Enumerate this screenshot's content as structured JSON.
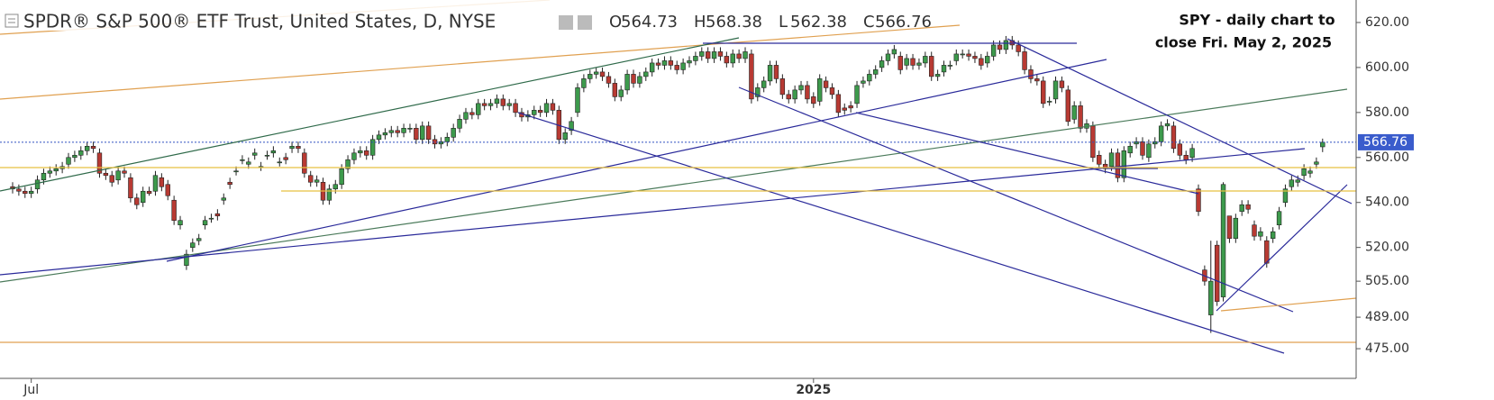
{
  "header": {
    "title": "SPDR® S&P 500® ETF Trust, United States, D, NYSE",
    "ohlc_letters": [
      "O",
      "H",
      "L",
      "C"
    ]
  },
  "annotation": [
    "SPY - daily chart to",
    "close Fri. May 2, 2025"
  ],
  "chart_data": {
    "type": "candlestick",
    "categories": [
      null,
      null,
      null,
      "Jul",
      null,
      null,
      null,
      null,
      null,
      null,
      null,
      null,
      null,
      null,
      null,
      null,
      null,
      null,
      null,
      null,
      null,
      null,
      null,
      null,
      null,
      null,
      null,
      null,
      null,
      null,
      null,
      null,
      null,
      null,
      null,
      null,
      null,
      null,
      null,
      null,
      null,
      null,
      null,
      null,
      null,
      null,
      null,
      null,
      null,
      null,
      null,
      null,
      null,
      null,
      null,
      null,
      null,
      null,
      null,
      null,
      null,
      null,
      null,
      null,
      null,
      null,
      null,
      null,
      null,
      null,
      null,
      null,
      null,
      null,
      null,
      null,
      null,
      null,
      null,
      null,
      null,
      null,
      null,
      null,
      null,
      null,
      null,
      null,
      null,
      null,
      null,
      null,
      null,
      null,
      null,
      null,
      null,
      null,
      null,
      null,
      null,
      null,
      null,
      null,
      null,
      null,
      null,
      null,
      null,
      null,
      null,
      null,
      null,
      null,
      null,
      null,
      null,
      null,
      null,
      null,
      null,
      null,
      null,
      null,
      null,
      null,
      null,
      null,
      null,
      "2025",
      null,
      null,
      null,
      null,
      null,
      null,
      null,
      null,
      null,
      null,
      null,
      null,
      null,
      null,
      null,
      null,
      null,
      null,
      null,
      null,
      null,
      null,
      null,
      null,
      null,
      null,
      null,
      null,
      null,
      null,
      null,
      null,
      null,
      null,
      null,
      null,
      null,
      null,
      null,
      null,
      null,
      null,
      null,
      null,
      null,
      null,
      null,
      null,
      null,
      null,
      null,
      null,
      null,
      null,
      null,
      null,
      null,
      null,
      null,
      null,
      null,
      null,
      null,
      null,
      null,
      null,
      null,
      null,
      null,
      null,
      null,
      null,
      null,
      null,
      null,
      null,
      null,
      null,
      null,
      null,
      null,
      null
    ],
    "open": [
      547,
      546,
      545,
      544,
      546,
      550,
      553,
      554,
      555,
      557,
      560,
      561,
      563,
      565,
      562,
      553,
      552,
      550,
      554,
      551,
      542,
      540,
      545,
      545,
      551,
      548,
      541,
      530,
      512,
      520,
      523,
      530,
      533,
      535,
      541,
      549,
      554,
      559,
      557,
      561,
      556,
      561,
      562,
      558,
      560,
      564,
      565,
      562,
      552,
      549,
      549,
      541,
      546,
      548,
      555,
      559,
      562,
      563,
      561,
      568,
      570,
      571,
      572,
      571,
      573,
      573,
      568,
      574,
      568,
      566,
      567,
      569,
      573,
      577,
      580,
      579,
      584,
      583,
      584,
      586,
      583,
      584,
      580,
      578,
      579,
      581,
      580,
      584,
      581,
      568,
      572,
      580,
      591,
      595,
      597,
      598,
      596,
      593,
      587,
      590,
      597,
      593,
      596,
      598,
      602,
      601,
      603,
      601,
      599,
      602,
      603,
      605,
      607,
      604,
      607,
      605,
      602,
      606,
      604,
      606,
      587,
      591,
      594,
      601,
      595,
      588,
      586,
      590,
      592,
      587,
      585,
      594,
      591,
      588,
      582,
      583,
      584,
      593,
      594,
      597,
      600,
      603,
      606,
      605,
      601,
      604,
      601,
      602,
      605,
      596,
      598,
      601,
      603,
      606,
      606,
      605,
      604,
      602,
      605,
      610,
      608,
      612,
      610,
      607,
      599,
      595,
      594,
      585,
      586,
      594,
      590,
      577,
      583,
      573,
      574,
      561,
      557,
      556,
      562,
      551,
      562,
      566,
      567,
      560,
      566,
      567,
      574,
      574,
      566,
      561,
      560,
      546,
      510,
      490,
      521,
      498,
      534,
      524,
      536,
      539,
      530,
      525,
      523,
      524,
      530,
      540,
      547,
      549,
      552,
      553,
      557,
      564.73
    ],
    "high": [
      549,
      548,
      547,
      547,
      552,
      555,
      556,
      557,
      558,
      562,
      563,
      565,
      567,
      567,
      564,
      555,
      554,
      556,
      556,
      553,
      544,
      547,
      547,
      554,
      553,
      550,
      543,
      534,
      519,
      524,
      526,
      534,
      535,
      537,
      544,
      551,
      556,
      561,
      560,
      564,
      558,
      563,
      565,
      560,
      562,
      567,
      567,
      564,
      554,
      552,
      551,
      548,
      550,
      557,
      561,
      564,
      565,
      565,
      570,
      572,
      573,
      574,
      574,
      575,
      575,
      575,
      576,
      576,
      570,
      569,
      571,
      575,
      579,
      582,
      582,
      586,
      586,
      586,
      588,
      588,
      586,
      586,
      582,
      581,
      583,
      583,
      586,
      586,
      583,
      573,
      578,
      593,
      597,
      599,
      600,
      600,
      598,
      595,
      592,
      599,
      599,
      598,
      600,
      604,
      604,
      605,
      605,
      603,
      604,
      605,
      607,
      609,
      609,
      609,
      609,
      607,
      608,
      608,
      609,
      608,
      593,
      596,
      603,
      603,
      597,
      590,
      592,
      594,
      594,
      589,
      597,
      596,
      593,
      590,
      584,
      585,
      594,
      596,
      599,
      601,
      605,
      608,
      610,
      607,
      606,
      606,
      604,
      607,
      607,
      599,
      603,
      603,
      608,
      608,
      608,
      607,
      606,
      607,
      612,
      612,
      614,
      614,
      612,
      609,
      601,
      597,
      596,
      587,
      596,
      596,
      592,
      585,
      585,
      577,
      576,
      563,
      559,
      564,
      564,
      565,
      567,
      569,
      569,
      568,
      569,
      576,
      577,
      576,
      568,
      563,
      566,
      548,
      512,
      523,
      523,
      549,
      534,
      535,
      541,
      541,
      532,
      529,
      525,
      529,
      538,
      548,
      552,
      552,
      557,
      556,
      560,
      568.38
    ],
    "low": [
      544,
      543,
      542,
      542,
      544,
      548,
      551,
      552,
      553,
      555,
      558,
      559,
      561,
      562,
      551,
      550,
      547,
      548,
      551,
      540,
      537,
      538,
      543,
      543,
      545,
      541,
      530,
      528,
      510,
      518,
      521,
      528,
      531,
      532,
      539,
      546,
      552,
      557,
      555,
      559,
      554,
      559,
      560,
      556,
      557,
      562,
      562,
      551,
      547,
      547,
      539,
      539,
      544,
      546,
      553,
      557,
      560,
      559,
      559,
      566,
      568,
      569,
      569,
      569,
      571,
      566,
      566,
      566,
      564,
      564,
      565,
      567,
      571,
      575,
      577,
      577,
      581,
      581,
      582,
      581,
      581,
      578,
      576,
      576,
      577,
      578,
      578,
      579,
      566,
      566,
      570,
      578,
      589,
      593,
      595,
      594,
      591,
      585,
      585,
      588,
      591,
      591,
      594,
      596,
      599,
      599,
      599,
      597,
      597,
      600,
      601,
      603,
      602,
      602,
      603,
      600,
      600,
      602,
      602,
      584,
      585,
      589,
      592,
      593,
      586,
      584,
      584,
      588,
      584,
      582,
      583,
      589,
      586,
      578,
      579,
      580,
      582,
      591,
      592,
      595,
      598,
      601,
      604,
      597,
      599,
      599,
      599,
      600,
      594,
      594,
      596,
      599,
      601,
      604,
      603,
      602,
      599,
      600,
      603,
      606,
      606,
      608,
      605,
      597,
      593,
      592,
      582,
      583,
      584,
      589,
      574,
      575,
      571,
      571,
      558,
      555,
      553,
      554,
      549,
      549,
      560,
      564,
      559,
      558,
      564,
      565,
      572,
      562,
      559,
      557,
      558,
      534,
      503,
      482,
      494,
      496,
      522,
      522,
      534,
      535,
      523,
      523,
      511,
      522,
      528,
      538,
      545,
      547,
      550,
      551,
      555,
      562.38
    ],
    "close": [
      546,
      545,
      544,
      545,
      550,
      553,
      554,
      555,
      556,
      560,
      561,
      563,
      565,
      564,
      553,
      552,
      549,
      554,
      553,
      542,
      539,
      545,
      544,
      552,
      547,
      543,
      532,
      532,
      517,
      522,
      524,
      532,
      533,
      534,
      542,
      548,
      554,
      559,
      558,
      562,
      556,
      561,
      563,
      558,
      559,
      565,
      564,
      553,
      549,
      550,
      541,
      546,
      548,
      555,
      559,
      562,
      563,
      561,
      568,
      570,
      571,
      572,
      571,
      573,
      573,
      568,
      574,
      568,
      566,
      567,
      569,
      573,
      577,
      580,
      579,
      584,
      583,
      584,
      586,
      583,
      584,
      580,
      578,
      579,
      581,
      580,
      584,
      581,
      568,
      571,
      576,
      591,
      595,
      597,
      598,
      596,
      593,
      587,
      590,
      597,
      593,
      596,
      598,
      602,
      601,
      603,
      601,
      599,
      602,
      603,
      605,
      607,
      604,
      607,
      605,
      602,
      606,
      604,
      607,
      586,
      591,
      594,
      601,
      595,
      588,
      586,
      590,
      592,
      586,
      584,
      595,
      591,
      588,
      580,
      581,
      582,
      592,
      594,
      597,
      599,
      603,
      606,
      608,
      599,
      604,
      601,
      602,
      605,
      596,
      597,
      601,
      601,
      606,
      606,
      605,
      604,
      601,
      605,
      610,
      608,
      612,
      610,
      607,
      599,
      595,
      594,
      584,
      585,
      594,
      591,
      576,
      583,
      573,
      575,
      560,
      557,
      555,
      562,
      551,
      563,
      565,
      567,
      561,
      566,
      567,
      574,
      575,
      564,
      561,
      559,
      564,
      536,
      505,
      505,
      496,
      548,
      524,
      533,
      539,
      537,
      525,
      527,
      513,
      527,
      536,
      546,
      550,
      550,
      555,
      554,
      558,
      566.76
    ],
    "up_color": "#3d9a4c",
    "down_color": "#b83a33",
    "ylim": [
      461.8,
      630
    ],
    "yticks": [
      {
        "value": 475,
        "label": "475.00"
      },
      {
        "value": 489,
        "label": "489.00"
      },
      {
        "value": 505,
        "label": "505.00"
      },
      {
        "value": 520,
        "label": "520.00"
      },
      {
        "value": 540,
        "label": "540.00"
      },
      {
        "value": 560,
        "label": "560.00"
      },
      {
        "value": 580,
        "label": "580.00"
      },
      {
        "value": 600,
        "label": "600.00"
      },
      {
        "value": 620,
        "label": "620.00"
      }
    ],
    "last_price_line": true
  }
}
